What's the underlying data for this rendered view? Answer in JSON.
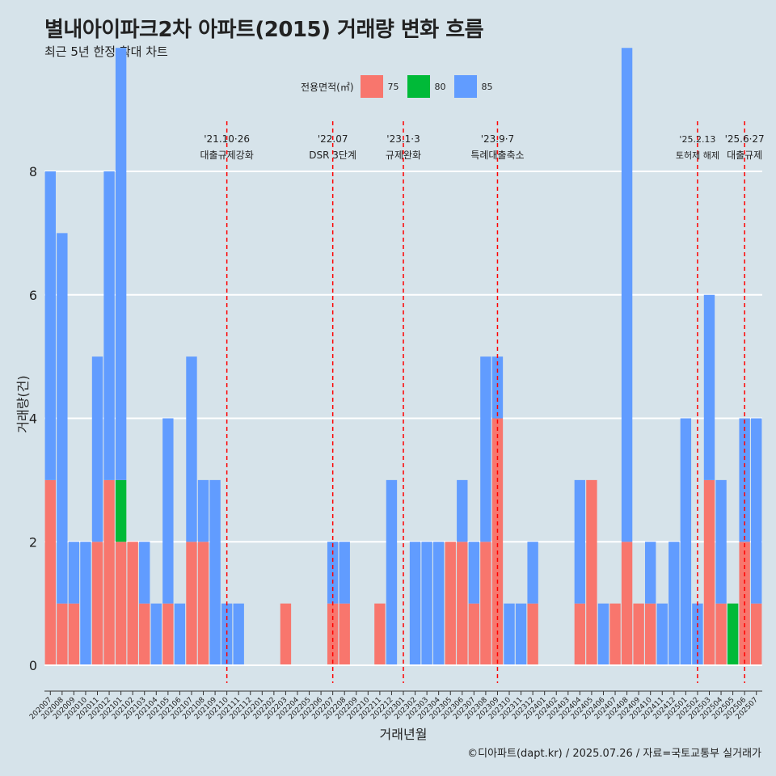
{
  "header": {
    "title": "별내아이파크2차 아파트(2015) 거래량 변화 흐름",
    "subtitle": "최근 5년 한정 확대 차트"
  },
  "legend": {
    "title": "전용면적(㎡)",
    "items": [
      {
        "label": "75",
        "color": "#f8766d"
      },
      {
        "label": "80",
        "color": "#00ba38"
      },
      {
        "label": "85",
        "color": "#619cff"
      }
    ]
  },
  "caption": "©디아파트(dapt.kr) / 2025.07.26 / 자료=국토교통부 실거래가",
  "chart_data": {
    "type": "bar",
    "xlabel": "거래년월",
    "ylabel": "거래량(건)",
    "ylim": [
      0,
      8
    ],
    "yticks": [
      0,
      2,
      4,
      6,
      8
    ],
    "grid": true,
    "legend_position": "top",
    "categories": [
      "202007",
      "202008",
      "202009",
      "202010",
      "202011",
      "202012",
      "202101",
      "202102",
      "202103",
      "202104",
      "202105",
      "202106",
      "202107",
      "202108",
      "202109",
      "202110",
      "202111",
      "202112",
      "202201",
      "202202",
      "202203",
      "202204",
      "202205",
      "202206",
      "202207",
      "202208",
      "202209",
      "202210",
      "202211",
      "202212",
      "202301",
      "202302",
      "202303",
      "202304",
      "202305",
      "202306",
      "202307",
      "202308",
      "202309",
      "202310",
      "202311",
      "202312",
      "202401",
      "202402",
      "202403",
      "202404",
      "202405",
      "202406",
      "202407",
      "202408",
      "202409",
      "202410",
      "202411",
      "202412",
      "202501",
      "202502",
      "202503",
      "202504",
      "202505",
      "202506",
      "202507"
    ],
    "series": [
      {
        "name": "75",
        "color": "#f8766d",
        "values": [
          3,
          1,
          1,
          0,
          2,
          3,
          2,
          2,
          1,
          0,
          1,
          0,
          2,
          2,
          0,
          0,
          0,
          0,
          0,
          0,
          1,
          0,
          0,
          0,
          1,
          1,
          0,
          0,
          1,
          0,
          0,
          0,
          0,
          0,
          2,
          2,
          1,
          2,
          4,
          0,
          0,
          1,
          0,
          0,
          0,
          1,
          3,
          0,
          1,
          2,
          1,
          1,
          0,
          0,
          0,
          0,
          3,
          1,
          0,
          2,
          1
        ]
      },
      {
        "name": "80",
        "color": "#00ba38",
        "values": [
          0,
          0,
          0,
          0,
          0,
          0,
          1,
          0,
          0,
          0,
          0,
          0,
          0,
          0,
          0,
          0,
          0,
          0,
          0,
          0,
          0,
          0,
          0,
          0,
          0,
          0,
          0,
          0,
          0,
          0,
          0,
          0,
          0,
          0,
          0,
          0,
          0,
          0,
          0,
          0,
          0,
          0,
          0,
          0,
          0,
          0,
          0,
          0,
          0,
          0,
          0,
          0,
          0,
          0,
          0,
          0,
          0,
          0,
          1,
          0,
          0
        ]
      },
      {
        "name": "85",
        "color": "#619cff",
        "values": [
          5,
          6,
          1,
          2,
          3,
          5,
          7,
          0,
          1,
          1,
          3,
          1,
          3,
          1,
          3,
          1,
          1,
          0,
          0,
          0,
          0,
          0,
          0,
          0,
          1,
          1,
          0,
          0,
          0,
          3,
          0,
          2,
          2,
          2,
          0,
          1,
          1,
          3,
          1,
          1,
          1,
          1,
          0,
          0,
          0,
          2,
          0,
          1,
          0,
          8,
          0,
          1,
          1,
          2,
          4,
          1,
          3,
          2,
          0,
          2,
          3
        ]
      }
    ],
    "annotations": [
      {
        "category": "202110",
        "date": "'21.10·26",
        "text": "대출규제강화"
      },
      {
        "category": "202207",
        "date": "'22.07",
        "text": "DSR 3단계"
      },
      {
        "category": "202301",
        "date": "'23.1·3",
        "text": "규제완화"
      },
      {
        "category": "202309",
        "date": "'23.9·7",
        "text": "특례대출축소"
      },
      {
        "category": "202502",
        "date": "'25.2.13",
        "text": "토허제 해제"
      },
      {
        "category": "202506",
        "date": "'25.6·27",
        "text": "대출규제"
      }
    ]
  }
}
